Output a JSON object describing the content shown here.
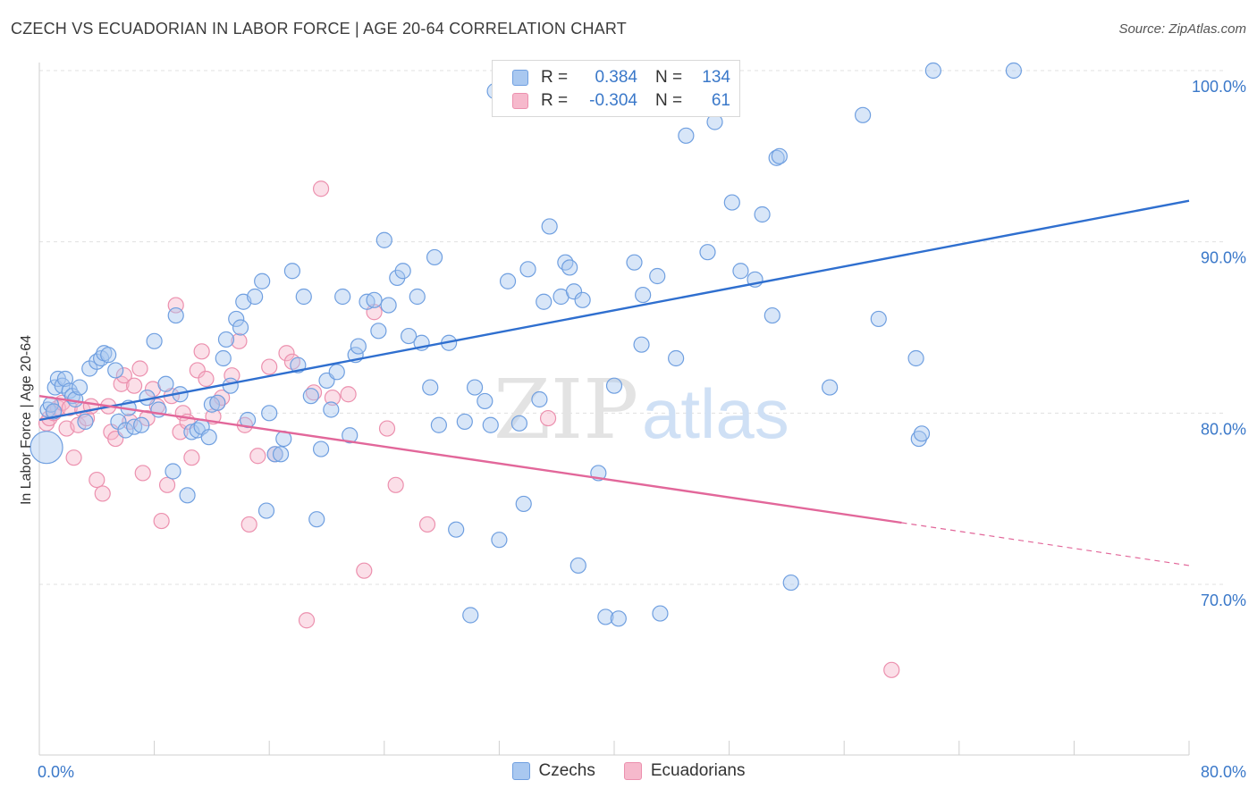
{
  "title": "CZECH VS ECUADORIAN IN LABOR FORCE | AGE 20-64 CORRELATION CHART",
  "source": "Source: ZipAtlas.com",
  "watermark": {
    "zip": "ZIP",
    "atlas": "atlas"
  },
  "legend": {
    "rows": [
      {
        "r_label": "R =",
        "r_value": "0.384",
        "n_label": "N =",
        "n_value": "134"
      },
      {
        "r_label": "R =",
        "r_value": "-0.304",
        "n_label": "N =",
        "n_value": "61"
      }
    ]
  },
  "bottom_legend": {
    "czechs": "Czechs",
    "ecuadorians": "Ecuadorians"
  },
  "colors": {
    "czech_fill": "#a9c8f0",
    "czech_stroke": "#6f9fe0",
    "czech_line": "#2f6fcf",
    "ecuador_fill": "#f6b9cc",
    "ecuador_stroke": "#ec90ae",
    "ecuador_line": "#e2679a",
    "tick_text": "#3a78c9",
    "grid": "#e0e0e0"
  },
  "chart_data": {
    "type": "scatter",
    "title": "CZECH VS ECUADORIAN IN LABOR FORCE | AGE 20-64 CORRELATION CHART",
    "xlabel": "",
    "ylabel": "In Labor Force | Age 20-64",
    "xlim": [
      0,
      80
    ],
    "ylim": [
      62,
      104
    ],
    "x_ticks": [
      0,
      80
    ],
    "x_tick_labels": [
      "0.0%",
      "80.0%"
    ],
    "y_ticks": [
      70,
      80,
      90,
      100
    ],
    "y_tick_labels": [
      "70.0%",
      "80.0%",
      "90.0%",
      "100.0%"
    ],
    "grid": true,
    "legend_position": "top-center",
    "series": [
      {
        "name": "Czechs",
        "r": 0.384,
        "n": 134,
        "trend": {
          "x": [
            0,
            80
          ],
          "y": [
            79.6,
            92.4
          ]
        },
        "points": [
          [
            0.5,
            78
          ],
          [
            0.6,
            80.2
          ],
          [
            0.8,
            80.5
          ],
          [
            1,
            80.1
          ],
          [
            1.1,
            81.5
          ],
          [
            1.3,
            82
          ],
          [
            1.6,
            81.6
          ],
          [
            1.8,
            82
          ],
          [
            2.1,
            81.3
          ],
          [
            2.3,
            81
          ],
          [
            2.5,
            80.8
          ],
          [
            2.8,
            81.5
          ],
          [
            3.2,
            79.5
          ],
          [
            3.5,
            82.6
          ],
          [
            4,
            83
          ],
          [
            4.3,
            83.2
          ],
          [
            4.5,
            83.5
          ],
          [
            4.8,
            83.4
          ],
          [
            5.3,
            82.5
          ],
          [
            5.5,
            79.5
          ],
          [
            6,
            79
          ],
          [
            6.2,
            80.3
          ],
          [
            6.6,
            79.2
          ],
          [
            7.1,
            79.3
          ],
          [
            7.5,
            80.9
          ],
          [
            8,
            84.2
          ],
          [
            8.3,
            80.2
          ],
          [
            8.8,
            81.7
          ],
          [
            9.3,
            76.6
          ],
          [
            9.5,
            85.7
          ],
          [
            9.8,
            81.1
          ],
          [
            10.3,
            75.2
          ],
          [
            10.6,
            78.9
          ],
          [
            11,
            79
          ],
          [
            11.3,
            79.2
          ],
          [
            11.8,
            78.6
          ],
          [
            12,
            80.5
          ],
          [
            12.4,
            80.6
          ],
          [
            12.8,
            83.2
          ],
          [
            13,
            84.3
          ],
          [
            13.3,
            81.6
          ],
          [
            13.7,
            85.5
          ],
          [
            14,
            85
          ],
          [
            14.5,
            79.6
          ],
          [
            14.2,
            86.5
          ],
          [
            15,
            86.8
          ],
          [
            15.5,
            87.7
          ],
          [
            15.8,
            74.3
          ],
          [
            16,
            80
          ],
          [
            16.4,
            77.6
          ],
          [
            16.8,
            77.6
          ],
          [
            17,
            78.5
          ],
          [
            17.6,
            88.3
          ],
          [
            18,
            82.8
          ],
          [
            18.4,
            86.8
          ],
          [
            18.9,
            81
          ],
          [
            19.3,
            73.8
          ],
          [
            19.6,
            77.9
          ],
          [
            20,
            81.9
          ],
          [
            20.3,
            80.2
          ],
          [
            20.7,
            82.4
          ],
          [
            21.1,
            86.8
          ],
          [
            21.6,
            78.7
          ],
          [
            22,
            83.4
          ],
          [
            22.2,
            83.9
          ],
          [
            22.8,
            86.5
          ],
          [
            23.3,
            86.6
          ],
          [
            23.6,
            84.8
          ],
          [
            24,
            90.1
          ],
          [
            24.3,
            86.3
          ],
          [
            24.9,
            87.9
          ],
          [
            25.3,
            88.3
          ],
          [
            25.7,
            84.5
          ],
          [
            26.3,
            86.8
          ],
          [
            26.6,
            84.1
          ],
          [
            27.2,
            81.5
          ],
          [
            27.5,
            89.1
          ],
          [
            27.8,
            79.3
          ],
          [
            28.5,
            84.1
          ],
          [
            29,
            73.2
          ],
          [
            29.6,
            79.5
          ],
          [
            30,
            68.2
          ],
          [
            30.3,
            81.5
          ],
          [
            31,
            80.7
          ],
          [
            31.4,
            79.3
          ],
          [
            31.7,
            98.8
          ],
          [
            32,
            72.6
          ],
          [
            32.6,
            87.7
          ],
          [
            33.4,
            79.4
          ],
          [
            33.7,
            74.7
          ],
          [
            34,
            88.4
          ],
          [
            34.8,
            80.8
          ],
          [
            35.1,
            86.5
          ],
          [
            35.5,
            90.9
          ],
          [
            36.3,
            86.8
          ],
          [
            36.6,
            88.8
          ],
          [
            36.9,
            88.5
          ],
          [
            37.2,
            87.1
          ],
          [
            37.5,
            71.1
          ],
          [
            37.8,
            86.6
          ],
          [
            38.9,
            76.5
          ],
          [
            39.4,
            68.1
          ],
          [
            39.6,
            100
          ],
          [
            40,
            81.6
          ],
          [
            40.3,
            68
          ],
          [
            41.4,
            88.8
          ],
          [
            41.9,
            84
          ],
          [
            42,
            86.9
          ],
          [
            43,
            88
          ],
          [
            43.2,
            68.3
          ],
          [
            43.8,
            100
          ],
          [
            44.3,
            83.2
          ],
          [
            45,
            96.2
          ],
          [
            46.5,
            89.4
          ],
          [
            47,
            97
          ],
          [
            47.5,
            98
          ],
          [
            48,
            100
          ],
          [
            48.2,
            92.3
          ],
          [
            48.8,
            88.3
          ],
          [
            49.8,
            87.8
          ],
          [
            50.3,
            91.6
          ],
          [
            51,
            85.7
          ],
          [
            51.3,
            94.9
          ],
          [
            51.5,
            95
          ],
          [
            52.3,
            70.1
          ],
          [
            55,
            81.5
          ],
          [
            57.3,
            97.4
          ],
          [
            58.4,
            85.5
          ],
          [
            61,
            83.2
          ],
          [
            61.2,
            78.5
          ],
          [
            61.4,
            78.8
          ],
          [
            62.2,
            100
          ],
          [
            67.8,
            100
          ]
        ]
      },
      {
        "name": "Ecuadorians",
        "r": -0.304,
        "n": 61,
        "trend": {
          "x": [
            0,
            60
          ],
          "y": [
            81,
            73.6
          ],
          "dashed_x": [
            60,
            80
          ],
          "dashed_y": [
            73.6,
            71.1
          ]
        },
        "points": [
          [
            0.5,
            79.4
          ],
          [
            0.7,
            79.7
          ],
          [
            1,
            80
          ],
          [
            1.3,
            80.3
          ],
          [
            1.6,
            80.6
          ],
          [
            1.9,
            79.1
          ],
          [
            2.1,
            80.3
          ],
          [
            2.4,
            77.4
          ],
          [
            2.7,
            79.3
          ],
          [
            3,
            80.2
          ],
          [
            3.3,
            79.7
          ],
          [
            3.6,
            80.4
          ],
          [
            4,
            76.1
          ],
          [
            4.4,
            75.3
          ],
          [
            4.8,
            80.4
          ],
          [
            5,
            78.9
          ],
          [
            5.3,
            78.5
          ],
          [
            5.7,
            81.7
          ],
          [
            5.9,
            82.2
          ],
          [
            6.3,
            79.5
          ],
          [
            6.6,
            81.6
          ],
          [
            7,
            82.6
          ],
          [
            7.2,
            76.5
          ],
          [
            7.5,
            79.7
          ],
          [
            7.9,
            81.4
          ],
          [
            8.2,
            80.4
          ],
          [
            8.5,
            73.7
          ],
          [
            8.9,
            75.8
          ],
          [
            9.2,
            81
          ],
          [
            9.5,
            86.3
          ],
          [
            9.8,
            78.9
          ],
          [
            10,
            80
          ],
          [
            10.3,
            79.5
          ],
          [
            10.6,
            77.4
          ],
          [
            11,
            82.5
          ],
          [
            11.3,
            83.6
          ],
          [
            11.6,
            82
          ],
          [
            12.1,
            79.8
          ],
          [
            12.4,
            80.6
          ],
          [
            12.7,
            80.9
          ],
          [
            13.4,
            82.2
          ],
          [
            13.9,
            84.2
          ],
          [
            14.3,
            79.3
          ],
          [
            14.6,
            73.5
          ],
          [
            15.2,
            77.5
          ],
          [
            16,
            82.7
          ],
          [
            16.4,
            77.6
          ],
          [
            17.2,
            83.5
          ],
          [
            17.6,
            83
          ],
          [
            18.6,
            67.9
          ],
          [
            19.1,
            81.2
          ],
          [
            19.6,
            93.1
          ],
          [
            20.4,
            80.9
          ],
          [
            21.5,
            81.1
          ],
          [
            22.6,
            70.8
          ],
          [
            23.3,
            85.9
          ],
          [
            24.2,
            79.1
          ],
          [
            24.8,
            75.8
          ],
          [
            27,
            73.5
          ],
          [
            35.4,
            79.7
          ],
          [
            59.3,
            65
          ]
        ]
      }
    ]
  }
}
